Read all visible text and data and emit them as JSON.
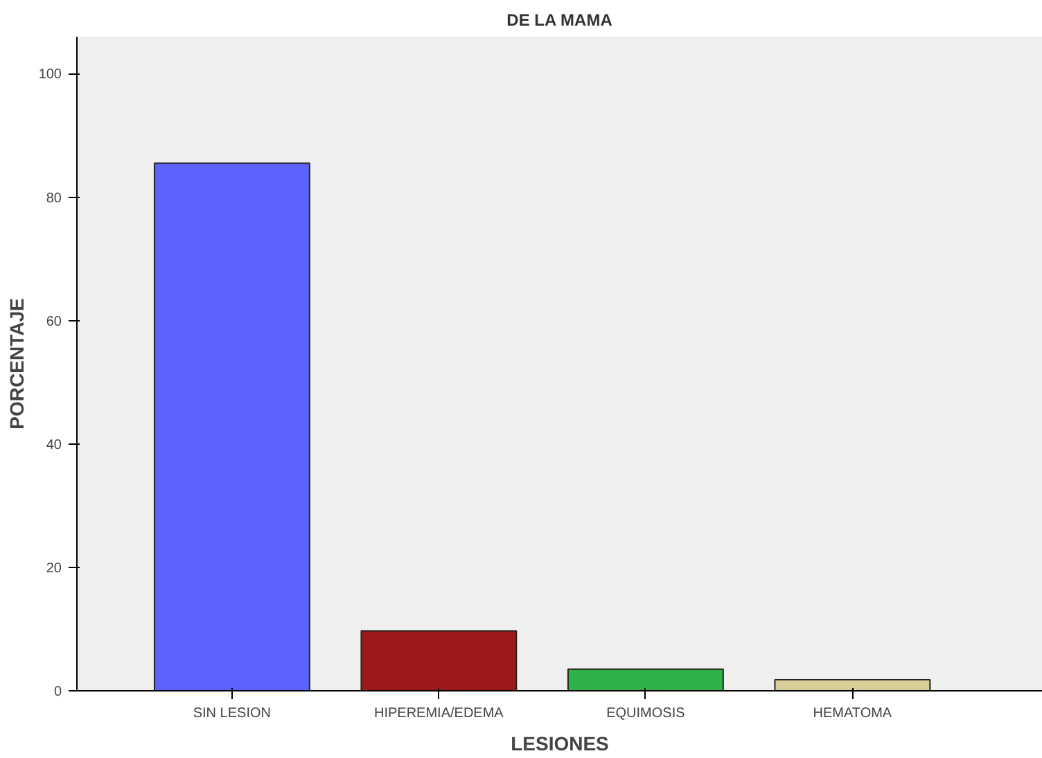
{
  "chart_data": {
    "type": "bar",
    "title": "DE LA MAMA",
    "xlabel": "LESIONES",
    "ylabel": "PORCENTAJE",
    "categories": [
      "SIN LESION",
      "HIPEREMIA/EDEMA",
      "EQUIMOSIS",
      "HEMATOMA"
    ],
    "values": [
      85.5,
      9.7,
      3.5,
      1.8
    ],
    "colors": [
      "#5d62ff",
      "#9e1a1a",
      "#2db34a",
      "#d6cf9a"
    ],
    "ylim": [
      0,
      106
    ],
    "yticks": [
      0,
      20,
      40,
      60,
      80,
      100
    ],
    "grid": false
  }
}
